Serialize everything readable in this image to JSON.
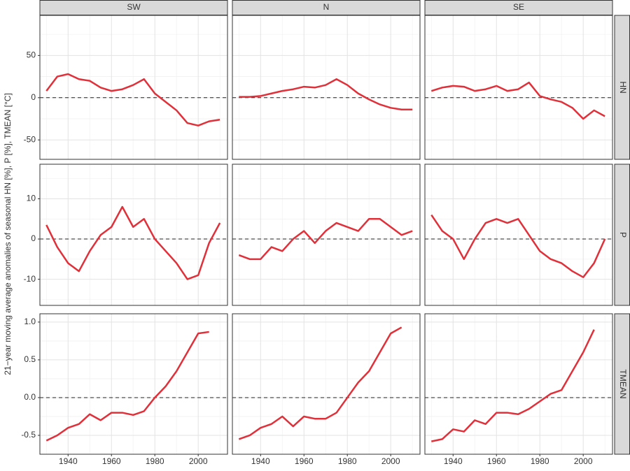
{
  "y_label": "21−year moving average anomalies of seasonal HN [%], P [%], TMEAN [°C]",
  "columns": [
    "SW",
    "N",
    "SE"
  ],
  "rows": [
    "HN",
    "P",
    "TMEAN"
  ],
  "chart_data": [
    {
      "type": "line",
      "x": [
        1930,
        1935,
        1940,
        1945,
        1950,
        1955,
        1960,
        1965,
        1970,
        1975,
        1980,
        1985,
        1990,
        1995,
        2000,
        2005,
        2010
      ],
      "series": [
        {
          "color": "#e0303a",
          "values": [
            8,
            25,
            28,
            22,
            20,
            12,
            8,
            10,
            15,
            22,
            5,
            -5,
            -15,
            -30,
            -33,
            -28,
            -26
          ]
        }
      ],
      "xlim": [
        1927,
        2013.5
      ],
      "xticks": [
        1940,
        1960,
        1980,
        2000
      ],
      "ylim": [
        -73,
        97.5
      ],
      "yticks": [
        -50,
        0,
        50
      ],
      "grid": true,
      "reference_line": 0
    },
    {
      "type": "line",
      "x": [
        1930,
        1935,
        1940,
        1945,
        1950,
        1955,
        1960,
        1965,
        1970,
        1975,
        1980,
        1985,
        1990,
        1995,
        2000,
        2005,
        2010
      ],
      "series": [
        {
          "color": "#e0303a",
          "values": [
            1,
            1,
            2,
            5,
            8,
            10,
            13,
            12,
            15,
            22,
            15,
            5,
            -2,
            -8,
            -12,
            -14,
            -14
          ]
        }
      ],
      "xlim": [
        1927,
        2013.5
      ],
      "xticks": [
        1940,
        1960,
        1980,
        2000
      ],
      "ylim": [
        -73,
        97.5
      ],
      "yticks": [
        -50,
        0,
        50
      ],
      "grid": true,
      "reference_line": 0
    },
    {
      "type": "line",
      "x": [
        1930,
        1935,
        1940,
        1945,
        1950,
        1955,
        1960,
        1965,
        1970,
        1975,
        1980,
        1985,
        1990,
        1995,
        2000,
        2005,
        2010
      ],
      "series": [
        {
          "color": "#e0303a",
          "values": [
            8,
            12,
            14,
            13,
            8,
            10,
            14,
            8,
            10,
            18,
            2,
            -2,
            -5,
            -12,
            -25,
            -15,
            -22
          ]
        }
      ],
      "xlim": [
        1927,
        2013.5
      ],
      "xticks": [
        1940,
        1960,
        1980,
        2000
      ],
      "ylim": [
        -73,
        97.5
      ],
      "yticks": [
        -50,
        0,
        50
      ],
      "grid": true,
      "reference_line": 0
    },
    {
      "type": "line",
      "x": [
        1930,
        1935,
        1940,
        1945,
        1950,
        1955,
        1960,
        1965,
        1970,
        1975,
        1980,
        1985,
        1990,
        1995,
        2000,
        2005,
        2010
      ],
      "series": [
        {
          "color": "#e0303a",
          "values": [
            3.5,
            -2,
            -6,
            -8,
            -3,
            1,
            3,
            8,
            3,
            5,
            0,
            -3,
            -6,
            -10,
            -9,
            -1,
            4
          ]
        }
      ],
      "xlim": [
        1927,
        2013.5
      ],
      "xticks": [
        1940,
        1960,
        1980,
        2000
      ],
      "ylim": [
        -16.5,
        18.6
      ],
      "yticks": [
        -10,
        0,
        10
      ],
      "grid": true,
      "reference_line": 0
    },
    {
      "type": "line",
      "x": [
        1930,
        1935,
        1940,
        1945,
        1950,
        1955,
        1960,
        1965,
        1970,
        1975,
        1980,
        1985,
        1990,
        1995,
        2000,
        2005,
        2010
      ],
      "series": [
        {
          "color": "#e0303a",
          "values": [
            -4,
            -5,
            -5,
            -2,
            -3,
            0,
            2,
            -1,
            2,
            4,
            3,
            2,
            5,
            5,
            3,
            1,
            2
          ]
        }
      ],
      "xlim": [
        1927,
        2013.5
      ],
      "xticks": [
        1940,
        1960,
        1980,
        2000
      ],
      "ylim": [
        -16.5,
        18.6
      ],
      "yticks": [
        -10,
        0,
        10
      ],
      "grid": true,
      "reference_line": 0
    },
    {
      "type": "line",
      "x": [
        1930,
        1935,
        1940,
        1945,
        1950,
        1955,
        1960,
        1965,
        1970,
        1975,
        1980,
        1985,
        1990,
        1995,
        2000,
        2005,
        2010
      ],
      "series": [
        {
          "color": "#e0303a",
          "values": [
            6,
            2,
            0,
            -5,
            0,
            4,
            5,
            4,
            5,
            1,
            -3,
            -5,
            -6,
            -8,
            -9.5,
            -6,
            0
          ]
        }
      ],
      "xlim": [
        1927,
        2013.5
      ],
      "xticks": [
        1940,
        1960,
        1980,
        2000
      ],
      "ylim": [
        -16.5,
        18.6
      ],
      "yticks": [
        -10,
        0,
        10
      ],
      "grid": true,
      "reference_line": 0
    },
    {
      "type": "line",
      "x": [
        1930,
        1935,
        1940,
        1945,
        1950,
        1955,
        1960,
        1965,
        1970,
        1975,
        1980,
        1985,
        1990,
        1995,
        2000,
        2005,
        2010
      ],
      "series": [
        {
          "color": "#e0303a",
          "values": [
            -0.57,
            -0.5,
            -0.4,
            -0.35,
            -0.22,
            -0.3,
            -0.2,
            -0.2,
            -0.23,
            -0.18,
            0,
            0.15,
            0.35,
            0.6,
            0.85,
            0.87,
            null
          ]
        }
      ],
      "xlim": [
        1927,
        2013.5
      ],
      "xticks": [
        1940,
        1960,
        1980,
        2000
      ],
      "ylim": [
        -0.75,
        1.11
      ],
      "yticks": [
        -0.5,
        {
          "value": 0,
          "label": "0.0"
        },
        0.5,
        {
          "value": 1,
          "label": "1.0"
        }
      ],
      "grid": true,
      "reference_line": 0
    },
    {
      "type": "line",
      "x": [
        1930,
        1935,
        1940,
        1945,
        1950,
        1955,
        1960,
        1965,
        1970,
        1975,
        1980,
        1985,
        1990,
        1995,
        2000,
        2005,
        2010
      ],
      "series": [
        {
          "color": "#e0303a",
          "values": [
            -0.55,
            -0.5,
            -0.4,
            -0.35,
            -0.25,
            -0.38,
            -0.25,
            -0.28,
            -0.28,
            -0.2,
            0,
            0.2,
            0.35,
            0.6,
            0.85,
            0.93,
            null
          ]
        }
      ],
      "xlim": [
        1927,
        2013.5
      ],
      "xticks": [
        1940,
        1960,
        1980,
        2000
      ],
      "ylim": [
        -0.75,
        1.11
      ],
      "yticks": [
        -0.5,
        {
          "value": 0,
          "label": "0.0"
        },
        0.5,
        {
          "value": 1,
          "label": "1.0"
        }
      ],
      "grid": true,
      "reference_line": 0
    },
    {
      "type": "line",
      "x": [
        1930,
        1935,
        1940,
        1945,
        1950,
        1955,
        1960,
        1965,
        1970,
        1975,
        1980,
        1985,
        1990,
        1995,
        2000,
        2005,
        2010
      ],
      "series": [
        {
          "color": "#e0303a",
          "values": [
            -0.58,
            -0.55,
            -0.42,
            -0.45,
            -0.3,
            -0.35,
            -0.2,
            -0.2,
            -0.22,
            -0.15,
            -0.05,
            0.05,
            0.1,
            0.35,
            0.6,
            0.9,
            null
          ]
        }
      ],
      "xlim": [
        1927,
        2013.5
      ],
      "xticks": [
        1940,
        1960,
        1980,
        2000
      ],
      "ylim": [
        -0.75,
        1.11
      ],
      "yticks": [
        -0.5,
        {
          "value": 0,
          "label": "0.0"
        },
        0.5,
        {
          "value": 1,
          "label": "1.0"
        }
      ],
      "grid": true,
      "reference_line": 0
    }
  ]
}
